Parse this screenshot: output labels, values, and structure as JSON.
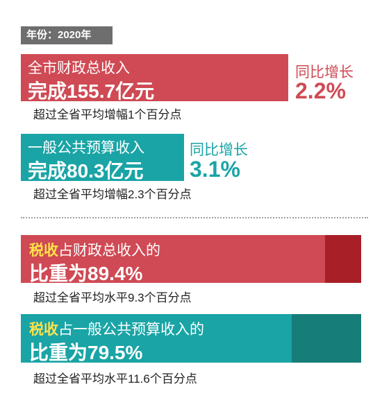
{
  "year_tag": "年份：2020年",
  "block1": {
    "line1": "全市财政总收入",
    "line2": "完成155.7亿元",
    "yoy_label": "同比增长",
    "yoy_value": "2.2%",
    "note": "超过全省平均增幅1个百分点",
    "color": "#cf4a54"
  },
  "block2": {
    "line1": "一般公共预算收入",
    "line2": "完成80.3亿元",
    "yoy_label": "同比增长",
    "yoy_value": "3.1%",
    "note": "超过全省平均增幅2.3个百分点",
    "color": "#1aa4a6"
  },
  "block3": {
    "highlight": "税收",
    "line1_rest": "占财政总收入的",
    "line2": "比重为89.4%",
    "share_percent": 89.4,
    "note": "超过全省平均水平9.3个百分点",
    "fill_color": "#cf4a54",
    "track_color": "#a81f27"
  },
  "block4": {
    "highlight": "税收",
    "line1_rest": "占一般公共预算收入的",
    "line2": "比重为79.5%",
    "share_percent": 79.5,
    "note": "超过全省平均水平11.6个百分点",
    "fill_color": "#1aa4a6",
    "track_color": "#177d78"
  },
  "highlight_color": "#ffe24a"
}
